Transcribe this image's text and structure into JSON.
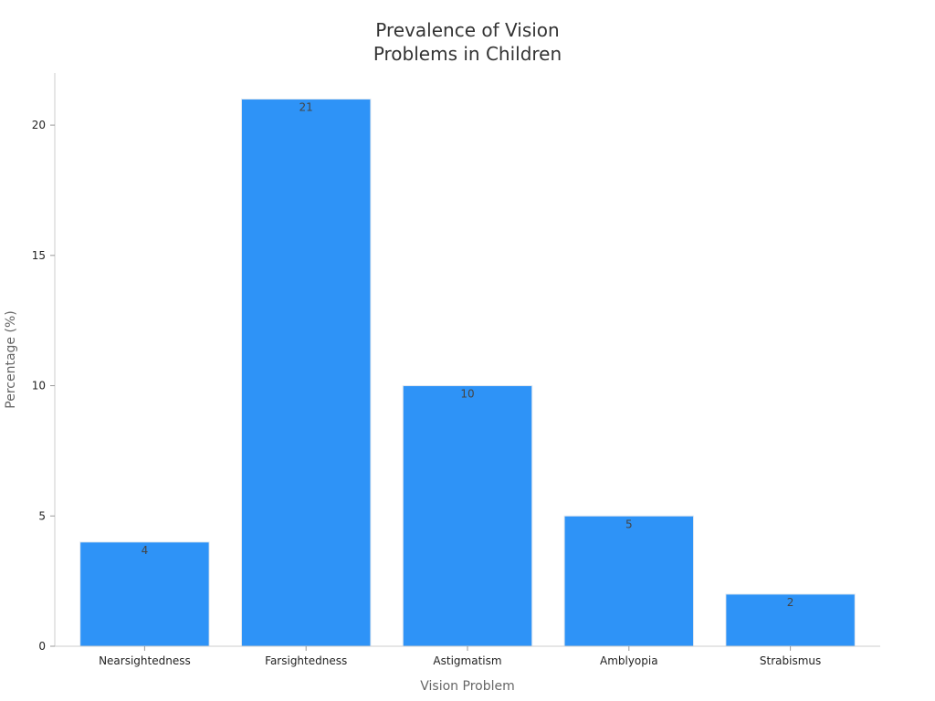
{
  "chart_data": {
    "type": "bar",
    "title_lines": [
      "Prevalence of Vision",
      "Problems in Children"
    ],
    "xlabel": "Vision Problem",
    "ylabel": "Percentage (%)",
    "categories": [
      "Nearsightedness",
      "Farsightedness",
      "Astigmatism",
      "Amblyopia",
      "Strabismus"
    ],
    "values": [
      4,
      21,
      10,
      5,
      2
    ],
    "data_labels": [
      "4",
      "21",
      "10",
      "5",
      "2"
    ],
    "ylim": [
      0,
      22
    ],
    "yticks": [
      0,
      5,
      10,
      15,
      20
    ],
    "ytick_labels": [
      "0",
      "5",
      "10",
      "15",
      "20"
    ],
    "grid": false,
    "legend": "none",
    "colors": {
      "bar": "#2E93F7",
      "bar_edge": "#E0E8F0",
      "axis": "#CCCCCC",
      "title": "#333333",
      "axis_label": "#666666"
    }
  }
}
